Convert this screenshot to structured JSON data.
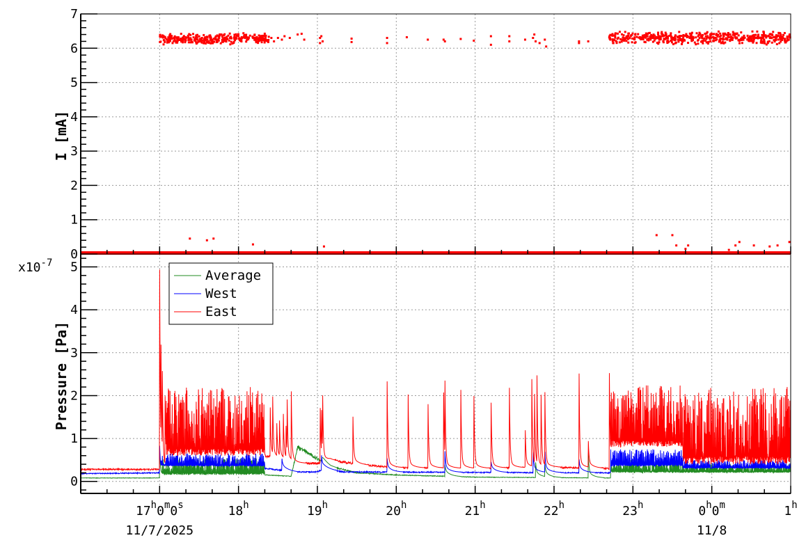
{
  "chart_data": [
    {
      "type": "scatter",
      "ylabel": "I [mA]",
      "ylim": [
        0,
        7
      ],
      "xlim": [
        "16:00",
        "01:00"
      ],
      "grid": true,
      "yticks": [
        "0",
        "1",
        "2",
        "3",
        "4",
        "5",
        "6",
        "7"
      ],
      "color": "#ff0000",
      "zero_baseline": {
        "from": "16:00",
        "to": "01:00",
        "min": 0.0,
        "max": 0.06
      },
      "dense_segments": [
        {
          "from": "17:00",
          "to": "18:24",
          "min": 6.1,
          "max": 6.45
        },
        {
          "from": "22:42",
          "to": "01:00",
          "min": 6.1,
          "max": 6.5
        }
      ],
      "points": [
        [
          "18:25",
          6.3
        ],
        [
          "18:27",
          6.2
        ],
        [
          "18:30",
          6.3
        ],
        [
          "18:33",
          6.25
        ],
        [
          "18:35",
          6.35
        ],
        [
          "18:39",
          6.3
        ],
        [
          "18:45",
          6.4
        ],
        [
          "18:48",
          6.42
        ],
        [
          "18:50",
          6.25
        ],
        [
          "19:02",
          6.3
        ],
        [
          "19:02",
          6.15
        ],
        [
          "19:03",
          6.35
        ],
        [
          "19:04",
          6.2
        ],
        [
          "19:26",
          6.28
        ],
        [
          "19:26",
          6.18
        ],
        [
          "19:53",
          6.3
        ],
        [
          "19:53",
          6.15
        ],
        [
          "20:08",
          6.32
        ],
        [
          "20:24",
          6.25
        ],
        [
          "20:36",
          6.25
        ],
        [
          "20:37",
          6.2
        ],
        [
          "20:49",
          6.27
        ],
        [
          "20:59",
          6.22
        ],
        [
          "21:12",
          6.35
        ],
        [
          "21:12",
          6.1
        ],
        [
          "21:26",
          6.35
        ],
        [
          "21:26",
          6.2
        ],
        [
          "21:38",
          6.25
        ],
        [
          "21:44",
          6.3
        ],
        [
          "21:45",
          6.4
        ],
        [
          "21:46",
          6.2
        ],
        [
          "21:49",
          6.15
        ],
        [
          "21:53",
          6.25
        ],
        [
          "21:54",
          6.05
        ],
        [
          "22:19",
          6.2
        ],
        [
          "22:19",
          6.15
        ],
        [
          "22:26",
          6.2
        ],
        [
          "17:23",
          0.45
        ],
        [
          "17:36",
          0.4
        ],
        [
          "17:41",
          0.45
        ],
        [
          "18:11",
          0.28
        ],
        [
          "19:05",
          0.22
        ],
        [
          "23:18",
          0.55
        ],
        [
          "23:30",
          0.55
        ],
        [
          "23:33",
          0.25
        ],
        [
          "23:40",
          0.15
        ],
        [
          "23:42",
          0.25
        ],
        [
          "00:13",
          0.12
        ],
        [
          "00:18",
          0.25
        ],
        [
          "00:21",
          0.35
        ],
        [
          "00:32",
          0.25
        ],
        [
          "00:44",
          0.22
        ],
        [
          "00:50",
          0.25
        ],
        [
          "00:59",
          0.35
        ]
      ]
    },
    {
      "type": "line",
      "ylabel": "Pressure [Pa]",
      "y_multiplier": "x10",
      "y_exponent": "-7",
      "ylim": [
        -0.28,
        5.3
      ],
      "xlim": [
        "16:00",
        "01:00"
      ],
      "grid": true,
      "yticks": [
        "0",
        "1",
        "2",
        "3",
        "4",
        "5"
      ],
      "legend_position": "top-left",
      "xticks": [
        {
          "time": "17:00",
          "parts": [
            "17",
            "h",
            "0",
            "m",
            "0",
            "s"
          ]
        },
        {
          "time": "18:00",
          "parts": [
            "18",
            "h"
          ]
        },
        {
          "time": "19:00",
          "parts": [
            "19",
            "h"
          ]
        },
        {
          "time": "20:00",
          "parts": [
            "20",
            "h"
          ]
        },
        {
          "time": "21:00",
          "parts": [
            "21",
            "h"
          ]
        },
        {
          "time": "22:00",
          "parts": [
            "22",
            "h"
          ]
        },
        {
          "time": "23:00",
          "parts": [
            "23",
            "h"
          ]
        },
        {
          "time": "00:00",
          "parts": [
            "0",
            "h",
            "0",
            "m"
          ]
        },
        {
          "time": "01:00",
          "parts": [
            "1",
            "h"
          ]
        }
      ],
      "date_labels": [
        {
          "time": "17:00",
          "text": "11/7/2025"
        },
        {
          "time": "00:00",
          "text": "11/8"
        }
      ],
      "series": [
        {
          "name": "Average",
          "color": "#228b22",
          "baseline": [
            [
              "16:00",
              0.08
            ],
            [
              "17:00",
              0.08
            ],
            [
              "18:20",
              0.15
            ],
            [
              "18:40",
              0.12
            ],
            [
              "18:45",
              0.8
            ],
            [
              "19:10",
              0.35
            ],
            [
              "19:30",
              0.2
            ],
            [
              "20:00",
              0.15
            ],
            [
              "21:00",
              0.1
            ],
            [
              "22:42",
              0.08
            ],
            [
              "01:00",
              0.2
            ]
          ],
          "bands": [
            {
              "from": "17:01",
              "to": "18:20",
              "low": 0.15,
              "high": 0.55
            },
            {
              "from": "22:43",
              "to": "23:38",
              "low": 0.2,
              "high": 0.5
            },
            {
              "from": "23:38",
              "to": "01:00",
              "low": 0.2,
              "high": 0.42
            }
          ],
          "spikes": [
            [
              "17:00",
              0.65
            ],
            [
              "19:03",
              0.3
            ],
            [
              "20:37",
              0.25
            ],
            [
              "21:46",
              0.3
            ],
            [
              "21:53",
              0.3
            ],
            [
              "22:26",
              0.6
            ]
          ]
        },
        {
          "name": "West",
          "color": "#0000ff",
          "baseline": [
            [
              "16:00",
              0.18
            ],
            [
              "17:00",
              0.2
            ],
            [
              "18:20",
              0.3
            ],
            [
              "18:45",
              0.22
            ],
            [
              "19:00",
              0.22
            ],
            [
              "19:05",
              0.3
            ],
            [
              "19:20",
              0.22
            ],
            [
              "22:42",
              0.2
            ],
            [
              "01:00",
              0.3
            ]
          ],
          "bands": [
            {
              "from": "17:01",
              "to": "18:20",
              "low": 0.35,
              "high": 0.65
            },
            {
              "from": "22:43",
              "to": "23:38",
              "low": 0.35,
              "high": 0.75
            },
            {
              "from": "23:38",
              "to": "01:00",
              "low": 0.3,
              "high": 0.5
            }
          ],
          "spikes": [
            [
              "17:00",
              0.7
            ],
            [
              "18:33",
              0.4
            ],
            [
              "19:03",
              0.55
            ],
            [
              "19:53",
              0.4
            ],
            [
              "20:37",
              0.6
            ],
            [
              "21:12",
              0.35
            ],
            [
              "21:44",
              0.65
            ],
            [
              "21:53",
              0.6
            ],
            [
              "22:19",
              0.38
            ]
          ]
        },
        {
          "name": "East",
          "color": "#ff0000",
          "baseline": [
            [
              "16:00",
              0.28
            ],
            [
              "17:00",
              0.28
            ],
            [
              "18:20",
              0.6
            ],
            [
              "18:45",
              0.42
            ],
            [
              "19:00",
              0.42
            ],
            [
              "19:10",
              0.5
            ],
            [
              "19:30",
              0.4
            ],
            [
              "20:00",
              0.32
            ],
            [
              "21:00",
              0.3
            ],
            [
              "22:00",
              0.33
            ],
            [
              "22:42",
              0.3
            ],
            [
              "01:00",
              0.35
            ]
          ],
          "bands": [
            {
              "from": "17:05",
              "to": "18:20",
              "low": 0.6,
              "high": 2.2
            },
            {
              "from": "22:43",
              "to": "23:38",
              "low": 0.8,
              "high": 2.25
            },
            {
              "from": "23:38",
              "to": "01:00",
              "low": 0.4,
              "high": 2.2
            }
          ],
          "spikes": [
            [
              "17:00",
              5.0
            ],
            [
              "17:01",
              3.4
            ],
            [
              "17:02",
              2.9
            ],
            [
              "17:04",
              2.5
            ],
            [
              "18:24",
              1.9
            ],
            [
              "18:26",
              1.85
            ],
            [
              "18:29",
              1.4
            ],
            [
              "18:31",
              1.65
            ],
            [
              "18:34",
              1.65
            ],
            [
              "18:36",
              1.45
            ],
            [
              "18:37",
              1.8
            ],
            [
              "18:40",
              2.4
            ],
            [
              "19:02",
              1.95
            ],
            [
              "19:03",
              2.0
            ],
            [
              "19:04",
              1.9
            ],
            [
              "19:27",
              1.5
            ],
            [
              "19:53",
              2.3
            ],
            [
              "20:09",
              1.95
            ],
            [
              "20:24",
              2.26
            ],
            [
              "20:36",
              2.0
            ],
            [
              "20:37",
              2.45
            ],
            [
              "20:49",
              2.39
            ],
            [
              "20:59",
              2.1
            ],
            [
              "21:12",
              2.22
            ],
            [
              "21:26",
              2.32
            ],
            [
              "21:38",
              1.25
            ],
            [
              "21:43",
              2.7
            ],
            [
              "21:45",
              2.6
            ],
            [
              "21:47",
              2.55
            ],
            [
              "21:50",
              2.5
            ],
            [
              "21:53",
              2.2
            ],
            [
              "22:19",
              2.53
            ],
            [
              "22:26",
              0.9
            ],
            [
              "22:42",
              2.8
            ]
          ]
        }
      ]
    }
  ]
}
